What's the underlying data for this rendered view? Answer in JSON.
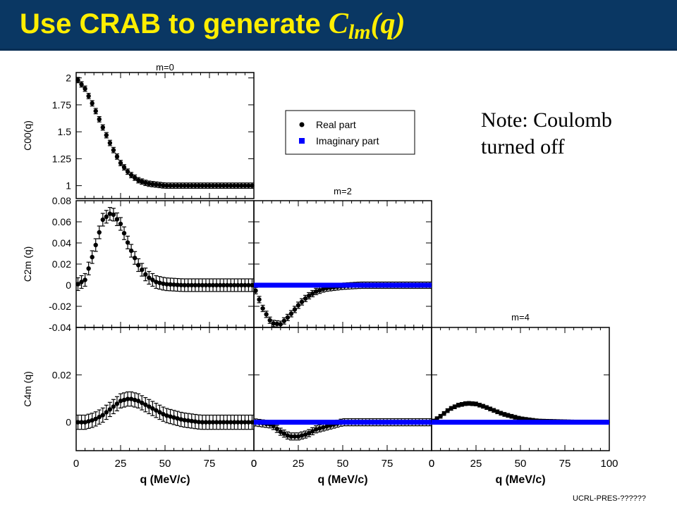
{
  "header": {
    "title_prefix": "Use CRAB to generate ",
    "symbol": "C",
    "subscript": "lm",
    "suffix": "(q)"
  },
  "note": {
    "line1": "Note: Coulomb",
    "line2": "turned off"
  },
  "footer": {
    "code": "UCRL-PRES-??????"
  },
  "colors": {
    "header_bg": "#0a3763",
    "title": "#ffee00",
    "real": "#000000",
    "imaginary": "#0000ff"
  },
  "chart_data": {
    "type": "scatter",
    "legend": {
      "position": "top-center",
      "entries": [
        "Real part",
        "Imaginary part"
      ]
    },
    "column_titles": [
      "m=0",
      "m=2",
      "m=4"
    ],
    "x": {
      "label": "q (MeV/c)",
      "range": [
        0,
        100
      ],
      "ticks": [
        0,
        25,
        50,
        75,
        100
      ],
      "tick_labels_shared": [
        "0",
        "25",
        "50",
        "75",
        "0"
      ],
      "tick_labels_last": [
        "0",
        "25",
        "50",
        "75",
        "100"
      ]
    },
    "rows": [
      {
        "ylabel": "C00(q)",
        "range": [
          0.88,
          2.05
        ],
        "ticks": [
          1,
          1.25,
          1.5,
          1.75,
          2
        ],
        "tick_labels": [
          "1",
          "1.25",
          "1.5",
          "1.75",
          "2"
        ]
      },
      {
        "ylabel": "C2m (q)",
        "range": [
          -0.04,
          0.08
        ],
        "ticks": [
          -0.04,
          -0.02,
          0,
          0.02,
          0.04,
          0.06,
          0.08
        ],
        "tick_labels": [
          "-0.04",
          "-0.02",
          "0",
          "0.02",
          "0.04",
          "0.06",
          "0.08"
        ]
      },
      {
        "ylabel": "C4m (q)",
        "range": [
          -0.012,
          0.04
        ],
        "ticks": [
          0,
          0.02
        ],
        "tick_labels": [
          "0",
          "0.02"
        ]
      }
    ],
    "panels": [
      {
        "row": 0,
        "col": 0,
        "series": [
          {
            "name": "Real part",
            "x": [
              0,
              5,
              10,
              15,
              20,
              25,
              30,
              35,
              40,
              45,
              50,
              60,
              80,
              100
            ],
            "y": [
              2.0,
              1.9,
              1.73,
              1.54,
              1.36,
              1.21,
              1.11,
              1.05,
              1.02,
              1.01,
              1.0,
              1.0,
              1.0,
              1.0
            ],
            "err": 0.025
          }
        ]
      },
      {
        "row": 1,
        "col": 0,
        "series": [
          {
            "name": "Real part",
            "x": [
              0,
              5,
              10,
              15,
              20,
              25,
              30,
              35,
              40,
              45,
              50,
              60,
              70,
              80,
              100
            ],
            "y": [
              0.0,
              0.005,
              0.032,
              0.062,
              0.069,
              0.058,
              0.036,
              0.019,
              0.008,
              0.003,
              0.001,
              0.0,
              0.0,
              0.0,
              0.0
            ],
            "err": 0.006
          }
        ]
      },
      {
        "row": 1,
        "col": 1,
        "series": [
          {
            "name": "Real part",
            "x": [
              0,
              5,
              10,
              15,
              20,
              25,
              30,
              35,
              40,
              50,
              60,
              80,
              100
            ],
            "y": [
              -0.001,
              -0.022,
              -0.036,
              -0.037,
              -0.029,
              -0.019,
              -0.011,
              -0.006,
              -0.003,
              -0.001,
              0.0,
              0.0,
              0.0
            ],
            "err": 0.003
          },
          {
            "name": "Imaginary part",
            "x": [
              0,
              100
            ],
            "y": [
              0.0,
              0.0
            ],
            "err": 0.0
          }
        ]
      },
      {
        "row": 2,
        "col": 0,
        "series": [
          {
            "name": "Real part",
            "x": [
              0,
              5,
              10,
              15,
              20,
              25,
              30,
              35,
              40,
              45,
              50,
              60,
              70,
              80,
              100
            ],
            "y": [
              0.0,
              0.0,
              0.001,
              0.003,
              0.006,
              0.009,
              0.01,
              0.009,
              0.007,
              0.005,
              0.003,
              0.001,
              0.0,
              0.0,
              0.0
            ],
            "err": 0.003
          }
        ]
      },
      {
        "row": 2,
        "col": 1,
        "series": [
          {
            "name": "Real part",
            "x": [
              0,
              10,
              15,
              20,
              25,
              30,
              35,
              40,
              50,
              60,
              80,
              100
            ],
            "y": [
              0.0,
              -0.001,
              -0.004,
              -0.006,
              -0.006,
              -0.005,
              -0.003,
              -0.002,
              0.0,
              0.0,
              0.0,
              0.0
            ],
            "err": 0.0015
          },
          {
            "name": "Imaginary part",
            "x": [
              0,
              100
            ],
            "y": [
              0.0,
              0.0
            ],
            "err": 0.0
          }
        ]
      },
      {
        "row": 2,
        "col": 2,
        "series": [
          {
            "name": "Real part",
            "x": [
              0,
              5,
              10,
              15,
              20,
              25,
              30,
              35,
              40,
              50,
              60,
              80,
              100
            ],
            "y": [
              0.0,
              0.0025,
              0.0055,
              0.0072,
              0.008,
              0.0077,
              0.0065,
              0.005,
              0.0035,
              0.0015,
              0.0005,
              0.0001,
              0.0
            ],
            "err": 0.0008
          },
          {
            "name": "Imaginary part",
            "x": [
              0,
              100
            ],
            "y": [
              0.0,
              0.0
            ],
            "err": 0.0
          }
        ]
      }
    ]
  }
}
